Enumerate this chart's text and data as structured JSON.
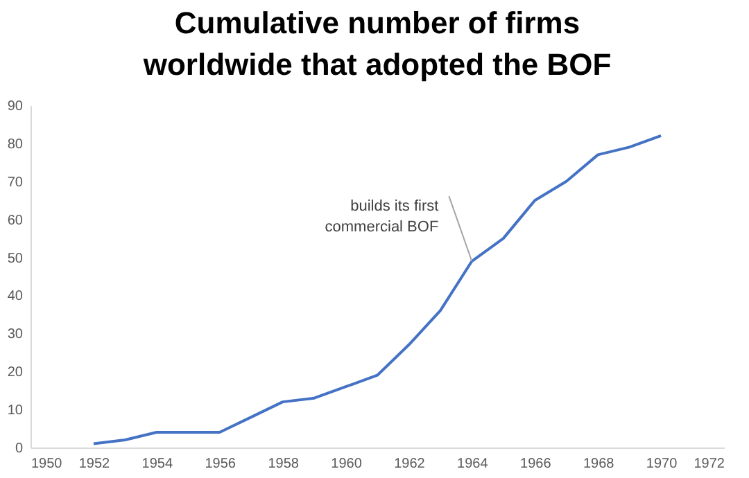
{
  "chart_data": {
    "type": "line",
    "title": "Cumulative number of firms\nworldwide that adopted the BOF",
    "x": [
      1952,
      1953,
      1954,
      1955,
      1956,
      1957,
      1958,
      1959,
      1960,
      1961,
      1962,
      1963,
      1964,
      1965,
      1966,
      1967,
      1968,
      1969,
      1970
    ],
    "series": [
      {
        "color": "#4472c4",
        "values": [
          1,
          2,
          4,
          4,
          4,
          8,
          12,
          13,
          16,
          19,
          27,
          36,
          49,
          55,
          65,
          70,
          77,
          79,
          82
        ]
      }
    ],
    "xlim": [
      1950,
      1972
    ],
    "xticks": [
      1950,
      1952,
      1954,
      1956,
      1958,
      1960,
      1962,
      1964,
      1966,
      1968,
      1970,
      1972
    ],
    "ylim": [
      0,
      90
    ],
    "yticks": [
      0,
      10,
      20,
      30,
      40,
      50,
      60,
      70,
      80,
      90
    ],
    "grid": false,
    "legend": false,
    "marker": "none",
    "line_style": "solid",
    "annotations": [
      {
        "text": "builds its first commercial BOF",
        "x": 1964,
        "y": 49
      }
    ]
  }
}
